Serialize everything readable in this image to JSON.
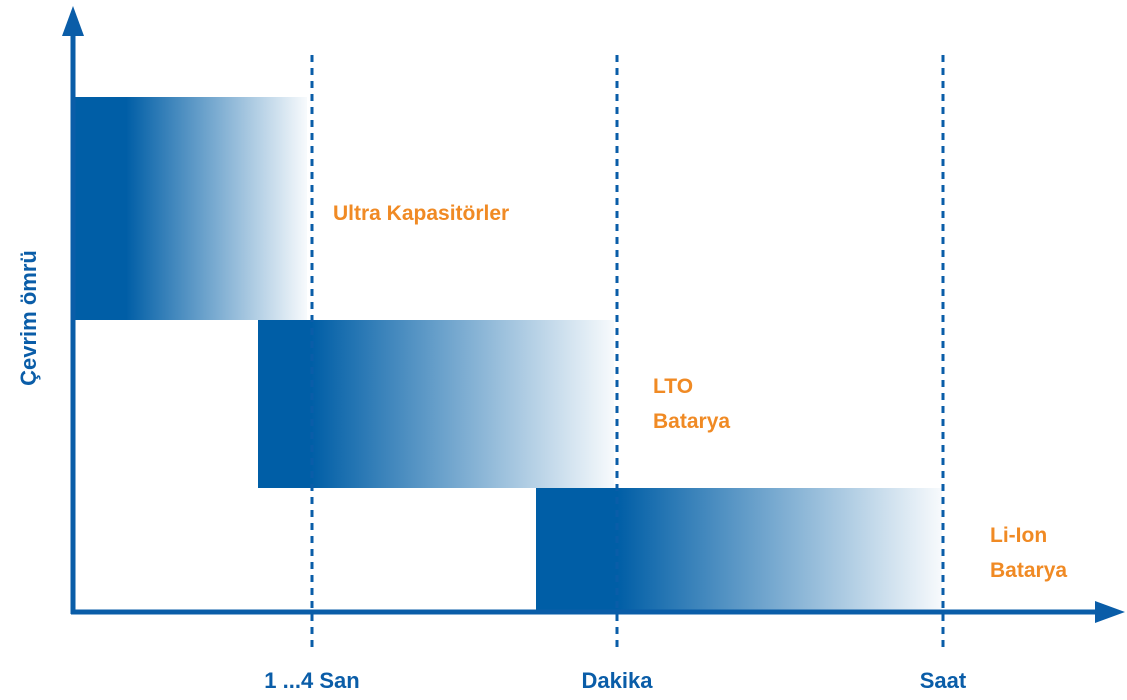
{
  "y_axis_label": "Çevrim ömrü",
  "x_labels": [
    "1 ...4 San",
    "Dakika",
    "Saat"
  ],
  "blocks": [
    {
      "label": [
        "Ultra Kapasitörler"
      ]
    },
    {
      "label": [
        "LTO",
        "Batarya"
      ]
    },
    {
      "label": [
        "Li-Ion",
        "Batarya"
      ]
    }
  ]
}
